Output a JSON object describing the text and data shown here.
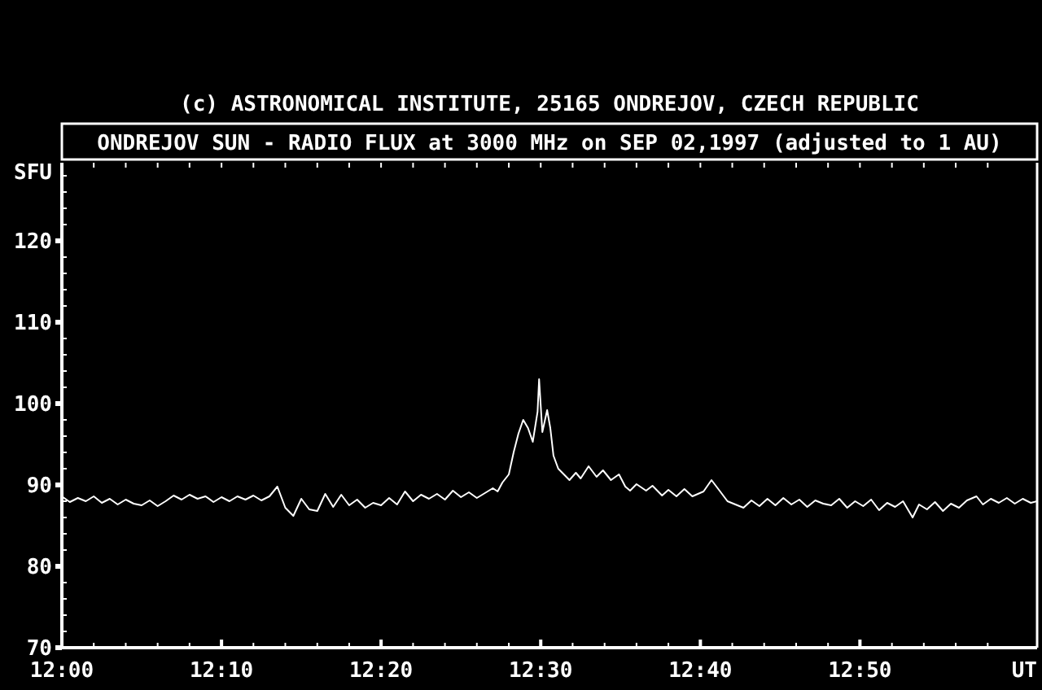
{
  "chart_data": {
    "type": "line",
    "title": "ONDREJOV SUN - RADIO FLUX at 3000 MHz on SEP 02,1997 (adjusted to 1 AU)",
    "subtitle": "(c) ASTRONOMICAL INSTITUTE, 25165 ONDREJOV, CZECH REPUBLIC",
    "xlabel": "UT",
    "ylabel": "SFU",
    "xlim": [
      12,
      13.0183
    ],
    "ylim": [
      70,
      129.6
    ],
    "xticks": [
      {
        "value": 12,
        "label": "12:00"
      },
      {
        "value": 12.1667,
        "label": "12:10"
      },
      {
        "value": 12.3333,
        "label": "12:20"
      },
      {
        "value": 12.5,
        "label": "12:30"
      },
      {
        "value": 12.6667,
        "label": "12:40"
      },
      {
        "value": 12.8333,
        "label": "12:50"
      },
      {
        "value": 12.0333,
        "label": null
      },
      {
        "value": 12.0667,
        "label": null
      },
      {
        "value": 12.1,
        "label": null
      },
      {
        "value": 12.1333,
        "label": null
      },
      {
        "value": 12.2,
        "label": null
      },
      {
        "value": 12.2333,
        "label": null
      },
      {
        "value": 12.2667,
        "label": null
      },
      {
        "value": 12.3,
        "label": null
      },
      {
        "value": 12.3667,
        "label": null
      },
      {
        "value": 12.4,
        "label": null
      },
      {
        "value": 12.4333,
        "label": null
      },
      {
        "value": 12.4667,
        "label": null
      },
      {
        "value": 12.5333,
        "label": null
      },
      {
        "value": 12.5667,
        "label": null
      },
      {
        "value": 12.6,
        "label": null
      },
      {
        "value": 12.6333,
        "label": null
      },
      {
        "value": 12.7,
        "label": null
      },
      {
        "value": 12.7333,
        "label": null
      },
      {
        "value": 12.7667,
        "label": null
      },
      {
        "value": 12.8,
        "label": null
      },
      {
        "value": 12.8667,
        "label": null
      },
      {
        "value": 12.9,
        "label": null
      },
      {
        "value": 12.9333,
        "label": null
      },
      {
        "value": 12.9667,
        "label": null
      }
    ],
    "yticks": [
      70,
      80,
      90,
      100,
      110,
      120,
      {
        "value": 72,
        "label": null
      },
      {
        "value": 74,
        "label": null
      },
      {
        "value": 76,
        "label": null
      },
      {
        "value": 78,
        "label": null
      },
      {
        "value": 82,
        "label": null
      },
      {
        "value": 84,
        "label": null
      },
      {
        "value": 86,
        "label": null
      },
      {
        "value": 88,
        "label": null
      },
      {
        "value": 92,
        "label": null
      },
      {
        "value": 94,
        "label": null
      },
      {
        "value": 96,
        "label": null
      },
      {
        "value": 98,
        "label": null
      },
      {
        "value": 102,
        "label": null
      },
      {
        "value": 104,
        "label": null
      },
      {
        "value": 106,
        "label": null
      },
      {
        "value": 108,
        "label": null
      },
      {
        "value": 112,
        "label": null
      },
      {
        "value": 114,
        "label": null
      },
      {
        "value": 116,
        "label": null
      },
      {
        "value": 118,
        "label": null
      },
      {
        "value": 122,
        "label": null
      },
      {
        "value": 124,
        "label": null
      },
      {
        "value": 126,
        "label": null
      },
      {
        "value": 128,
        "label": null
      }
    ],
    "marker": "none",
    "line_style": "solid",
    "x": [
      12,
      12.0083,
      12.0167,
      12.025,
      12.0333,
      12.0417,
      12.05,
      12.0583,
      12.0667,
      12.075,
      12.0833,
      12.0917,
      12.1,
      12.1083,
      12.1167,
      12.125,
      12.1333,
      12.1417,
      12.15,
      12.1583,
      12.1667,
      12.175,
      12.1833,
      12.1917,
      12.2,
      12.2083,
      12.2167,
      12.225,
      12.2333,
      12.2417,
      12.25,
      12.2583,
      12.2667,
      12.275,
      12.2833,
      12.2917,
      12.3,
      12.3083,
      12.3167,
      12.325,
      12.3333,
      12.3417,
      12.35,
      12.3583,
      12.3667,
      12.375,
      12.3833,
      12.3917,
      12.4,
      12.4083,
      12.4167,
      12.425,
      12.4333,
      12.4417,
      12.45,
      12.455,
      12.46,
      12.4667,
      12.4717,
      12.4767,
      12.4817,
      12.4867,
      12.4917,
      12.4967,
      12.4983,
      12.5017,
      12.5067,
      12.51,
      12.5133,
      12.5183,
      12.525,
      12.53,
      12.5367,
      12.5417,
      12.55,
      12.5583,
      12.565,
      12.5733,
      12.5817,
      12.5883,
      12.5933,
      12.6,
      12.61,
      12.6167,
      12.6267,
      12.6333,
      12.6417,
      12.65,
      12.6583,
      12.67,
      12.6783,
      12.6867,
      12.695,
      12.7033,
      12.7117,
      12.72,
      12.7283,
      12.7367,
      12.745,
      12.7533,
      12.7617,
      12.77,
      12.7783,
      12.7867,
      12.795,
      12.8033,
      12.8117,
      12.82,
      12.8283,
      12.8367,
      12.845,
      12.8533,
      12.8617,
      12.87,
      12.8783,
      12.8883,
      12.895,
      12.9033,
      12.9117,
      12.92,
      12.9283,
      12.9367,
      12.945,
      12.955,
      12.9617,
      12.97,
      12.9783,
      12.9867,
      12.995,
      13.0033,
      13.0117,
      13.0183
    ],
    "series": [
      {
        "color": "#ffffff",
        "values": [
          88.6,
          87.9,
          88.4,
          88.0,
          88.6,
          87.8,
          88.3,
          87.6,
          88.2,
          87.7,
          87.5,
          88.1,
          87.4,
          88.0,
          88.7,
          88.2,
          88.8,
          88.3,
          88.6,
          87.9,
          88.5,
          88.0,
          88.6,
          88.2,
          88.7,
          88.1,
          88.6,
          89.8,
          87.2,
          86.2,
          88.3,
          87.0,
          86.8,
          88.9,
          87.3,
          88.8,
          87.5,
          88.2,
          87.2,
          87.8,
          87.5,
          88.4,
          87.6,
          89.2,
          88.0,
          88.8,
          88.3,
          88.9,
          88.2,
          89.3,
          88.5,
          89.1,
          88.4,
          89.0,
          89.6,
          89.2,
          90.3,
          91.3,
          94.0,
          96.3,
          98.0,
          97.0,
          95.3,
          99.0,
          103.0,
          96.5,
          99.2,
          97.0,
          93.6,
          92.0,
          91.2,
          90.6,
          91.5,
          90.8,
          92.3,
          91.0,
          91.8,
          90.6,
          91.3,
          89.8,
          89.3,
          90.1,
          89.3,
          89.9,
          88.7,
          89.4,
          88.6,
          89.5,
          88.6,
          89.2,
          90.6,
          89.3,
          88.0,
          87.6,
          87.2,
          88.1,
          87.4,
          88.3,
          87.5,
          88.4,
          87.6,
          88.2,
          87.3,
          88.1,
          87.7,
          87.5,
          88.3,
          87.2,
          88.0,
          87.4,
          88.2,
          86.9,
          87.8,
          87.3,
          88.0,
          86.0,
          87.6,
          87.0,
          87.9,
          86.8,
          87.7,
          87.2,
          88.1,
          88.6,
          87.6,
          88.3,
          87.8,
          88.4,
          87.7,
          88.3,
          87.8,
          88.0
        ]
      }
    ]
  }
}
